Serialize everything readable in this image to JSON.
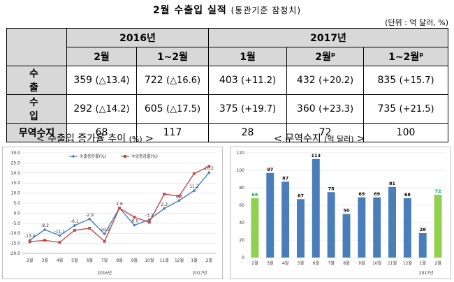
{
  "title": "2월 수출입 실적",
  "title_sub": "(통관기준 잠정치)",
  "unit": "(단위 : 억 달러, %)",
  "table": {
    "year_headers": [
      "2016년",
      "2017년"
    ],
    "col_headers": [
      "2월",
      "1~2월",
      "1월",
      "2월",
      "1~2월"
    ],
    "prelim_mark": "p",
    "rows": [
      {
        "label": "수 출",
        "cells": [
          [
            "359",
            "(△13.4)"
          ],
          [
            "722",
            "(△16.6)"
          ],
          [
            "403",
            "(+11.2)"
          ],
          [
            "432",
            "(+20.2)"
          ],
          [
            "835",
            "(+15.7)"
          ]
        ]
      },
      {
        "label": "수 입",
        "cells": [
          [
            "292",
            "(△14.2)"
          ],
          [
            "605",
            "(△17.5)"
          ],
          [
            "375",
            "(+19.7)"
          ],
          [
            "360",
            "(+23.3)"
          ],
          [
            "735",
            "(+21.5)"
          ]
        ]
      },
      {
        "label": "무역수지",
        "cells": [
          "68",
          "117",
          "28",
          "72",
          "100"
        ]
      }
    ]
  },
  "line_chart_title": "< 수출입 증가율 추이",
  "line_chart_title_unit": "(%)",
  "line_chart_title_end": " >",
  "bar_chart_title": "< 무역수지",
  "bar_chart_title_unit": "(억 달러)",
  "bar_chart_title_end": " >",
  "chart_data": [
    {
      "type": "line",
      "categories": [
        "2월",
        "3월",
        "4월",
        "5월",
        "6월",
        "7월",
        "8월",
        "9월",
        "10월",
        "11월",
        "12월",
        "1월",
        "2월"
      ],
      "year_labels": [
        "2016년",
        "2017년"
      ],
      "ylim": [
        -20,
        30
      ],
      "yticks": [
        "30.0",
        "25.0",
        "20.0",
        "15.0",
        "10.0",
        "5.0",
        "0.0",
        "-5.0",
        "-10.0",
        "-15.0",
        "-20.0"
      ],
      "legend_position": "top-center",
      "series": [
        {
          "name": "수출증감률(%)",
          "color": "#4a7ebb",
          "values": [
            -13.4,
            -8.2,
            -11.1,
            -6.1,
            -2.9,
            -10.3,
            2.6,
            -6.0,
            -3.2,
            2.3,
            6.3,
            11.2,
            20.2
          ],
          "labels": [
            "-13.4",
            "-8.2",
            "-11.1",
            "-6.1",
            "-2.9",
            "-10.3",
            "2.6",
            "-6.0",
            "-3.2",
            "2.3",
            "6.3",
            "11.2",
            "20.2"
          ]
        },
        {
          "name": "수입증감률(%)",
          "color": "#be4b48",
          "values": [
            -14.2,
            -13.5,
            -14.5,
            -8.5,
            -7.5,
            -14.0,
            2.5,
            -2.0,
            -4.5,
            9.5,
            8.5,
            19.7,
            23.3
          ]
        }
      ]
    },
    {
      "type": "bar",
      "categories": [
        "2월",
        "3월",
        "4월",
        "5월",
        "6월",
        "7월",
        "8월",
        "9월",
        "10월",
        "11월",
        "12월",
        "1월",
        "2월"
      ],
      "year_labels": [
        "2016년",
        "2017년"
      ],
      "values": [
        68,
        97,
        87,
        67,
        113,
        75,
        50,
        69,
        69,
        81,
        68,
        28,
        72
      ],
      "colors": [
        "#92d050",
        "#4a7ebb",
        "#4a7ebb",
        "#4a7ebb",
        "#4a7ebb",
        "#4a7ebb",
        "#4a7ebb",
        "#4a7ebb",
        "#4a7ebb",
        "#4a7ebb",
        "#4a7ebb",
        "#4a7ebb",
        "#92d050"
      ],
      "label_colors": [
        "#00b050",
        "#000000",
        "#000000",
        "#000000",
        "#000000",
        "#000000",
        "#000000",
        "#000000",
        "#000000",
        "#000000",
        "#000000",
        "#000000",
        "#00b050"
      ],
      "ylim": [
        0,
        120
      ],
      "yticks": [
        "120",
        "100",
        "80",
        "60",
        "40",
        "20",
        "0"
      ]
    }
  ]
}
